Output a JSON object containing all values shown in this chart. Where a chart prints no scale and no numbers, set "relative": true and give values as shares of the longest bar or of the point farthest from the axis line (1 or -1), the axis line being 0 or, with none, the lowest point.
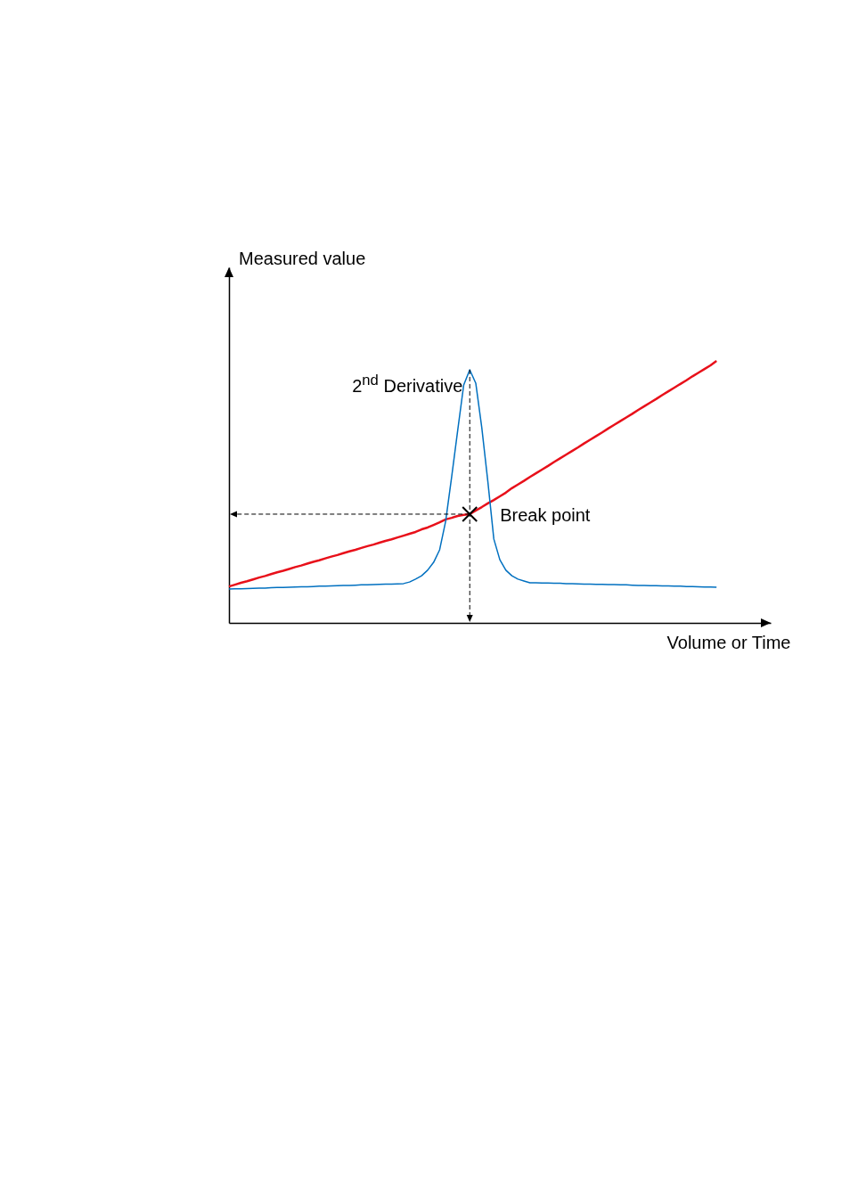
{
  "chart_data": {
    "type": "line",
    "relative": true,
    "xlabel": "Volume or Time",
    "categories": [
      null,
      null,
      null,
      null,
      null,
      null,
      null,
      null,
      null,
      null,
      null,
      null,
      null,
      null,
      null,
      null,
      null,
      null,
      null,
      null,
      null,
      null,
      null,
      null,
      null,
      null,
      null,
      null,
      null,
      null,
      null,
      null,
      null,
      null,
      null,
      null,
      null,
      null,
      null,
      null,
      null,
      null,
      null,
      null,
      null,
      null,
      null,
      null,
      null,
      null,
      null,
      null,
      null,
      null,
      null,
      null,
      null,
      null,
      null,
      null,
      null,
      null,
      null,
      null,
      null,
      null,
      null,
      null,
      null,
      null,
      null,
      null,
      null,
      null,
      null,
      null,
      null,
      null,
      null,
      null,
      null,
      null,
      null,
      null,
      null,
      null,
      null,
      null,
      null,
      null,
      null
    ],
    "series": [
      {
        "color": "#e8101a",
        "values": [
          0.139,
          0.146,
          0.153,
          0.159,
          0.166,
          0.173,
          0.179,
          0.186,
          0.193,
          0.199,
          0.206,
          0.213,
          0.219,
          0.226,
          0.233,
          0.239,
          0.246,
          0.253,
          0.259,
          0.266,
          0.273,
          0.279,
          0.286,
          0.293,
          0.299,
          0.306,
          0.313,
          0.319,
          0.326,
          0.333,
          0.34,
          0.347,
          0.357,
          0.364,
          0.374,
          0.384,
          0.395,
          0.401,
          0.408,
          0.412,
          0.415,
          0.429,
          0.442,
          0.456,
          0.469,
          0.483,
          0.497,
          0.514,
          0.528,
          0.542,
          0.557,
          0.571,
          0.585,
          0.599,
          0.614,
          0.628,
          0.642,
          0.656,
          0.67,
          0.685,
          0.699,
          0.713,
          0.727,
          0.742,
          0.756,
          0.77,
          0.784,
          0.798,
          0.813,
          0.827,
          0.841,
          0.855,
          0.87,
          0.884,
          0.898,
          0.912,
          0.926,
          0.941,
          0.955,
          0.969,
          0.983,
          1.0,
          null,
          null,
          null,
          null,
          null,
          null,
          null,
          null,
          null
        ]
      },
      {
        "name": "2$^{nd}$ Derivative",
        "color": "#0070c0",
        "values": [
          0.129,
          0.13,
          0.13,
          0.131,
          0.132,
          0.133,
          0.133,
          0.134,
          0.135,
          0.135,
          0.136,
          0.137,
          0.138,
          0.138,
          0.139,
          0.14,
          0.14,
          0.141,
          0.142,
          0.143,
          0.143,
          0.144,
          0.145,
          0.145,
          0.146,
          0.147,
          0.148,
          0.148,
          0.149,
          0.15,
          0.156,
          0.167,
          0.18,
          0.201,
          0.231,
          0.279,
          0.388,
          0.558,
          0.735,
          0.908,
          0.966,
          0.915,
          0.745,
          0.541,
          0.32,
          0.241,
          0.201,
          0.18,
          0.167,
          0.16,
          0.153,
          0.153,
          0.152,
          0.152,
          0.151,
          0.151,
          0.15,
          0.15,
          0.149,
          0.148,
          0.148,
          0.147,
          0.147,
          0.146,
          0.146,
          0.145,
          0.145,
          0.144,
          0.143,
          0.143,
          0.142,
          0.142,
          0.141,
          0.141,
          0.14,
          0.14,
          0.139,
          0.139,
          0.138,
          0.137,
          0.137,
          0.136,
          null,
          null,
          null,
          null,
          null,
          null,
          null,
          null,
          null
        ]
      }
    ],
    "annotations": [
      "Break point",
      "Measured value"
    ]
  }
}
